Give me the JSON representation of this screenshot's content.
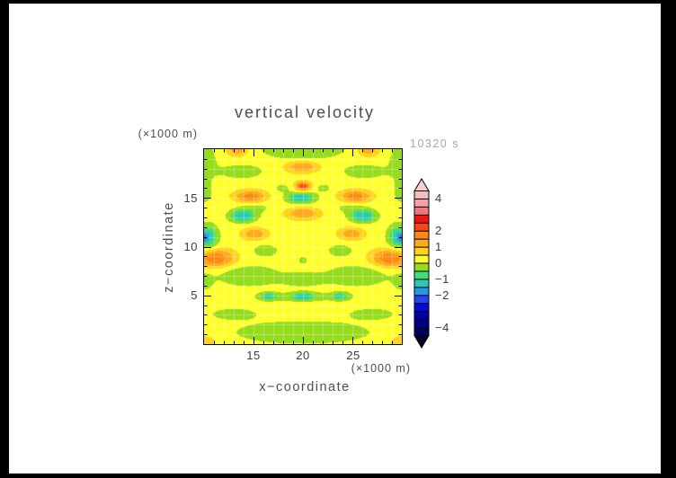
{
  "title": "vertical velocity",
  "annotations": {
    "timestamp": "10320 s",
    "x_unit": "(×1000 m)",
    "z_unit": "(×1000 m)"
  },
  "axes": {
    "x": {
      "title": "x−coordinate",
      "range": [
        10,
        30
      ],
      "major_ticks": [
        "15",
        "20",
        "25"
      ],
      "major_tick_values": [
        15,
        20,
        25
      ],
      "minor_tick_step": 1
    },
    "z": {
      "title": "z−coordinate",
      "range": [
        0,
        20
      ],
      "major_ticks": [
        "5",
        "10",
        "15"
      ],
      "major_tick_values": [
        5,
        10,
        15
      ],
      "minor_tick_step": 1
    }
  },
  "colorbar": {
    "range": [
      -5,
      5
    ],
    "segment_step": 0.5,
    "tick_labels": [
      "4",
      "2",
      "1",
      "0",
      "−1",
      "−2",
      "−4"
    ],
    "tick_values": [
      4,
      2,
      1,
      0,
      -1,
      -2,
      -4
    ],
    "colors": [
      "#000028",
      "#000060",
      "#000086",
      "#0000ac",
      "#0808d2",
      "#2244f4",
      "#2896e8",
      "#2cc8b4",
      "#42dc78",
      "#96dc1e",
      "#ffff2e",
      "#ffd21e",
      "#ffaa1e",
      "#ff8714",
      "#fa4614",
      "#ee1414",
      "#f07878",
      "#f2a2a8",
      "#f6bcc0",
      "#f8ced2"
    ],
    "arrow_top_color": "#f8ced2",
    "arrow_bottom_color": "#000028",
    "gridline_color": "rgba(255,255,255,0.3)"
  },
  "chart_data": {
    "type": "heatmap",
    "title": "vertical velocity",
    "xlabel": "x−coordinate (×1000 m)",
    "ylabel": "z−coordinate (×1000 m)",
    "annotation": "10320 s",
    "x_range": [
      10,
      30
    ],
    "z_range": [
      0,
      20
    ],
    "value_range": [
      -5,
      5
    ],
    "level_step": 0.5,
    "grid_step": 1,
    "background_value": 0.3,
    "gaussian_features_format": "x_center, z_center, sigma_x, sigma_z, amplitude",
    "gaussian_features": [
      [
        13.4,
        20.0,
        1.0,
        0.7,
        1.15
      ],
      [
        26.6,
        20.0,
        1.0,
        0.7,
        1.15
      ],
      [
        19.9,
        18.2,
        1.6,
        0.6,
        1.2
      ],
      [
        20.0,
        16.2,
        0.75,
        0.45,
        2.1
      ],
      [
        14.7,
        15.1,
        1.5,
        0.65,
        1.6
      ],
      [
        25.3,
        15.1,
        1.5,
        0.65,
        1.6
      ],
      [
        20.0,
        13.4,
        1.6,
        0.6,
        1.2
      ],
      [
        15.1,
        11.3,
        1.2,
        0.6,
        1.15
      ],
      [
        24.9,
        11.3,
        1.2,
        0.6,
        1.15
      ],
      [
        11.2,
        8.8,
        1.8,
        0.9,
        1.7
      ],
      [
        28.8,
        8.8,
        1.8,
        0.9,
        1.7
      ],
      [
        10.0,
        0.2,
        1.4,
        0.9,
        0.5
      ],
      [
        30.0,
        0.2,
        1.4,
        0.9,
        0.5
      ],
      [
        19.8,
        15.0,
        1.4,
        0.55,
        -1.7
      ],
      [
        13.9,
        13.1,
        1.3,
        0.6,
        -1.75
      ],
      [
        26.1,
        13.1,
        1.3,
        0.6,
        -1.75
      ],
      [
        10.4,
        11.0,
        1.0,
        1.2,
        -1.6
      ],
      [
        29.6,
        11.0,
        1.0,
        1.2,
        -1.6
      ],
      [
        10.0,
        10.9,
        0.4,
        0.5,
        -1.0
      ],
      [
        30.0,
        10.9,
        0.4,
        0.5,
        -1.0
      ],
      [
        16.5,
        4.9,
        0.8,
        0.4,
        -1.1
      ],
      [
        20.0,
        4.9,
        1.0,
        0.4,
        -1.1
      ],
      [
        23.8,
        4.9,
        0.8,
        0.4,
        -1.1
      ],
      [
        20.0,
        8.6,
        0.5,
        0.4,
        -0.55
      ],
      [
        20.0,
        20.0,
        4.2,
        1.1,
        -0.8
      ],
      [
        10.0,
        18.8,
        1.3,
        1.8,
        -0.65
      ],
      [
        30.0,
        18.8,
        1.3,
        1.8,
        -0.65
      ],
      [
        13.8,
        17.7,
        2.4,
        0.8,
        -0.6
      ],
      [
        26.2,
        17.7,
        2.4,
        0.8,
        -0.6
      ],
      [
        17.9,
        16.0,
        0.9,
        0.5,
        -0.45
      ],
      [
        22.1,
        16.0,
        0.9,
        0.5,
        -0.45
      ],
      [
        10.0,
        15.6,
        1.0,
        1.4,
        -0.5
      ],
      [
        30.0,
        15.6,
        1.0,
        1.4,
        -0.5
      ],
      [
        15.0,
        14.1,
        2.0,
        0.7,
        -0.5
      ],
      [
        25.0,
        14.1,
        2.0,
        0.7,
        -0.5
      ],
      [
        16.2,
        9.6,
        1.6,
        0.8,
        -0.5
      ],
      [
        23.8,
        9.6,
        1.6,
        0.8,
        -0.5
      ],
      [
        14.5,
        7.0,
        3.2,
        1.1,
        -0.75
      ],
      [
        25.5,
        7.0,
        3.2,
        1.1,
        -0.75
      ],
      [
        20.0,
        6.6,
        2.2,
        0.8,
        -0.55
      ],
      [
        10.0,
        6.4,
        0.9,
        0.9,
        -0.6
      ],
      [
        30.0,
        6.4,
        0.9,
        0.9,
        -0.6
      ],
      [
        20.0,
        4.85,
        5.0,
        0.5,
        -0.6
      ],
      [
        13.0,
        3.1,
        2.6,
        0.65,
        -0.55
      ],
      [
        27.0,
        3.1,
        2.6,
        0.65,
        -0.55
      ],
      [
        20.0,
        1.2,
        7.0,
        1.2,
        -0.75
      ]
    ]
  }
}
